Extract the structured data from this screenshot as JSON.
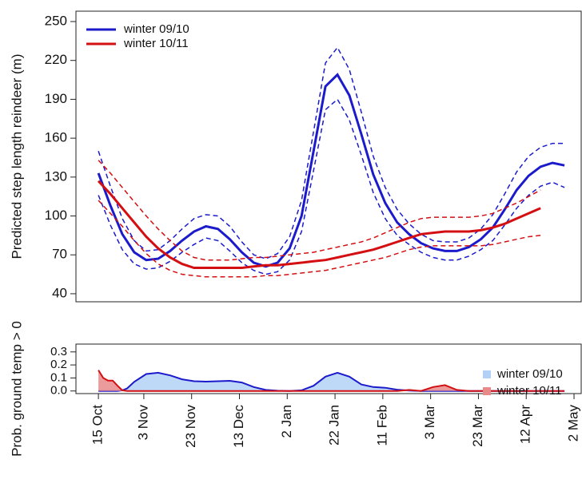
{
  "chart_data": [
    {
      "type": "line",
      "ylabel": "Predicted step length reindeer (m)",
      "legend": "upper left",
      "xlim": [
        -9.4,
        202
      ],
      "ylim": [
        33.8,
        258
      ],
      "yticks": [
        40,
        70,
        100,
        130,
        160,
        190,
        220,
        250
      ],
      "x": [
        0,
        5,
        10,
        15,
        20,
        25,
        30,
        35,
        40,
        45,
        50,
        55,
        60,
        65,
        70,
        75,
        80,
        85,
        90,
        95,
        100,
        105,
        110,
        115,
        120,
        125,
        130,
        135,
        140,
        145,
        150,
        155,
        160,
        165,
        170,
        175,
        180,
        185,
        190,
        195
      ],
      "series": [
        {
          "name": "winter 09/10",
          "color": "#1b1bcc",
          "values": [
            133,
            108,
            86,
            72,
            66,
            67,
            73,
            81,
            88,
            92,
            90,
            82,
            72,
            64,
            61,
            64,
            75,
            100,
            150,
            200,
            209,
            193,
            163,
            132,
            110,
            95,
            86,
            79,
            75,
            73,
            73,
            76,
            82,
            91,
            105,
            120,
            131,
            138,
            141,
            139
          ],
          "upper": [
            150,
            123,
            98,
            81,
            73,
            74,
            81,
            90,
            98,
            101,
            100,
            92,
            80,
            70,
            67,
            71,
            84,
            112,
            165,
            218,
            230,
            213,
            180,
            146,
            122,
            105,
            94,
            86,
            81,
            80,
            80,
            83,
            90,
            101,
            117,
            134,
            146,
            153,
            156,
            156
          ],
          "lower": [
            116,
            93,
            74,
            63,
            59,
            60,
            65,
            72,
            78,
            83,
            81,
            73,
            64,
            58,
            55,
            57,
            66,
            88,
            135,
            182,
            190,
            174,
            147,
            118,
            98,
            85,
            78,
            72,
            68,
            66,
            66,
            69,
            74,
            81,
            93,
            106,
            116,
            123,
            126,
            122
          ]
        },
        {
          "name": "winter 10/11",
          "color": "#d40f12",
          "values": [
            127,
            117,
            106,
            95,
            84,
            75,
            68,
            63,
            60,
            60,
            60,
            60,
            60,
            61,
            62,
            62,
            63,
            64,
            65,
            66,
            68,
            70,
            72,
            74,
            77,
            80,
            83,
            86,
            87,
            88,
            88,
            88,
            89,
            91,
            94,
            98,
            102,
            106,
            null,
            null
          ],
          "upper": [
            143,
            133,
            122,
            111,
            100,
            90,
            81,
            73,
            68,
            66,
            66,
            66,
            67,
            68,
            68,
            69,
            70,
            71,
            72,
            74,
            76,
            78,
            80,
            83,
            87,
            91,
            95,
            98,
            99,
            99,
            99,
            99,
            100,
            102,
            106,
            110,
            115,
            120,
            null,
            null
          ],
          "lower": [
            112,
            102,
            92,
            81,
            71,
            63,
            58,
            55,
            54,
            53,
            53,
            53,
            53,
            53,
            54,
            54,
            55,
            56,
            57,
            58,
            60,
            62,
            64,
            66,
            68,
            71,
            74,
            76,
            77,
            77,
            77,
            77,
            77,
            78,
            80,
            82,
            84,
            85,
            null,
            null
          ]
        }
      ]
    },
    {
      "type": "area",
      "ylabel": "Prob. ground temp > 0",
      "legend": "right",
      "xlim": [
        -9.4,
        202
      ],
      "ylim": [
        -0.02,
        0.36
      ],
      "yticks": [
        {
          "value": 0,
          "label": "0.0"
        },
        0.1,
        0.2,
        0.3
      ],
      "xticks": [
        {
          "value": 0,
          "label": "15 Oct"
        },
        {
          "value": 19,
          "label": "3 Nov"
        },
        {
          "value": 39,
          "label": "23 Nov"
        },
        {
          "value": 59,
          "label": "13 Dec"
        },
        {
          "value": 79,
          "label": "2 Jan"
        },
        {
          "value": 99,
          "label": "22 Jan"
        },
        {
          "value": 119,
          "label": "11 Feb"
        },
        {
          "value": 139,
          "label": "3 Mar"
        },
        {
          "value": 159,
          "label": "23 Mar"
        },
        {
          "value": 179,
          "label": "12 Apr"
        },
        {
          "value": 199,
          "label": "2 May"
        }
      ],
      "x": [
        0,
        2,
        4,
        6,
        8,
        10,
        12,
        15,
        20,
        25,
        30,
        35,
        40,
        45,
        50,
        55,
        60,
        65,
        70,
        75,
        80,
        85,
        90,
        95,
        100,
        105,
        110,
        115,
        120,
        125,
        130,
        135,
        140,
        145,
        150,
        155,
        160,
        165,
        170,
        175,
        180,
        185,
        190,
        195
      ],
      "series": [
        {
          "name": "winter 09/10",
          "color": "#1b1bcc",
          "fill": "#b3d1f7",
          "values": [
            0,
            0,
            0,
            0,
            0,
            0.005,
            0.02,
            0.07,
            0.13,
            0.14,
            0.12,
            0.09,
            0.075,
            0.072,
            0.075,
            0.078,
            0.065,
            0.03,
            0.008,
            0.002,
            0,
            0.005,
            0.04,
            0.11,
            0.14,
            0.11,
            0.05,
            0.03,
            0.025,
            0.01,
            0.003,
            0,
            0,
            0,
            0,
            0,
            0,
            0,
            0,
            0,
            0,
            0,
            0,
            0
          ]
        },
        {
          "name": "winter 10/11",
          "color": "#d40f12",
          "fill": "#e88a8a",
          "values": [
            0.16,
            0.1,
            0.08,
            0.08,
            0.04,
            0.005,
            0,
            0,
            0,
            0,
            0,
            0,
            0,
            0,
            0,
            0,
            0,
            0,
            0,
            0,
            0,
            0,
            0,
            0,
            0,
            0,
            0,
            0,
            0,
            0,
            0.008,
            0,
            0.03,
            0.045,
            0.008,
            0,
            0,
            0,
            0,
            0,
            0,
            0,
            0,
            0
          ]
        }
      ]
    }
  ]
}
